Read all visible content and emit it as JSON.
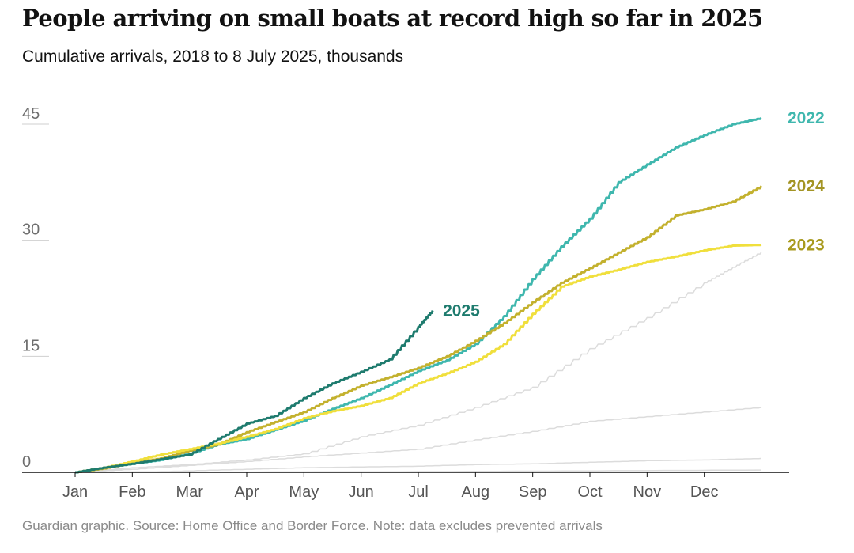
{
  "header": {
    "title": "People arriving on small boats at record high so far in 2025",
    "subtitle": "Cumulative arrivals, 2018 to 8 July 2025, thousands"
  },
  "footer": {
    "source": "Guardian graphic. Source: Home Office and Border Force. Note: data excludes prevented arrivals"
  },
  "chart_data": {
    "type": "line",
    "title": "People arriving on small boats at record high so far in 2025",
    "subtitle": "Cumulative arrivals, 2018 to 8 July 2025, thousands",
    "x_unit": "month",
    "xlim": [
      0,
      12
    ],
    "ylim": [
      0,
      45
    ],
    "y_ticks": [
      0,
      15,
      30,
      45
    ],
    "y_tick_labels": [
      "0",
      "15",
      "30",
      "45"
    ],
    "x_ticks": [
      0,
      1,
      2,
      3,
      4,
      5,
      6,
      7,
      8,
      9,
      10,
      11
    ],
    "x_tick_labels": [
      "Jan",
      "Feb",
      "Mar",
      "Apr",
      "May",
      "Jun",
      "Jul",
      "Aug",
      "Sep",
      "Oct",
      "Nov",
      "Dec"
    ],
    "grid": false,
    "series": [
      {
        "name": "",
        "color": "#dcdcdc",
        "points": [
          [
            0,
            0
          ],
          [
            6,
            0.1
          ],
          [
            12,
            0.3
          ]
        ]
      },
      {
        "name": "",
        "color": "#dcdcdc",
        "points": [
          [
            0,
            0
          ],
          [
            1.5,
            0.1
          ],
          [
            3,
            0.4
          ],
          [
            4,
            0.6
          ],
          [
            6,
            0.8
          ],
          [
            7,
            1.0
          ],
          [
            8,
            1.1
          ],
          [
            9,
            1.3
          ],
          [
            10,
            1.5
          ],
          [
            11,
            1.6
          ],
          [
            12,
            1.8
          ]
        ]
      },
      {
        "name": "",
        "color": "#dcdcdc",
        "points": [
          [
            0,
            0
          ],
          [
            1,
            0.4
          ],
          [
            2,
            0.9
          ],
          [
            3,
            1.4
          ],
          [
            4,
            2.0
          ],
          [
            5,
            2.5
          ],
          [
            6,
            3.0
          ],
          [
            7,
            4.2
          ],
          [
            8,
            5.3
          ],
          [
            9,
            6.6
          ],
          [
            10,
            7.2
          ],
          [
            11,
            7.8
          ],
          [
            12,
            8.4
          ]
        ]
      },
      {
        "name": "",
        "color": "#dcdcdc",
        "points": [
          [
            0,
            0
          ],
          [
            1,
            0.6
          ],
          [
            2,
            1.0
          ],
          [
            3,
            1.6
          ],
          [
            4,
            2.4
          ],
          [
            5,
            4.6
          ],
          [
            6,
            6.1
          ],
          [
            7,
            8.4
          ],
          [
            8,
            11.0
          ],
          [
            9,
            16.0
          ],
          [
            10,
            20.0
          ],
          [
            11,
            24.5
          ],
          [
            11.5,
            26.5
          ],
          [
            12,
            28.5
          ]
        ]
      },
      {
        "name": "2022",
        "color": "#3fb7ae",
        "label_at": "end",
        "points": [
          [
            0,
            0
          ],
          [
            0.5,
            0.6
          ],
          [
            1,
            1.1
          ],
          [
            1.5,
            1.6
          ],
          [
            2,
            2.4
          ],
          [
            2.5,
            3.6
          ],
          [
            3,
            4.3
          ],
          [
            3.5,
            5.5
          ],
          [
            4,
            6.7
          ],
          [
            4.5,
            8.2
          ],
          [
            5,
            9.6
          ],
          [
            5.5,
            11.3
          ],
          [
            6,
            13.1
          ],
          [
            6.5,
            14.5
          ],
          [
            7,
            16.6
          ],
          [
            7.5,
            20.2
          ],
          [
            8,
            25.0
          ],
          [
            8.5,
            29.2
          ],
          [
            9,
            32.8
          ],
          [
            9.5,
            37.5
          ],
          [
            10,
            39.8
          ],
          [
            10.5,
            42.0
          ],
          [
            11,
            43.6
          ],
          [
            11.5,
            45.0
          ],
          [
            12,
            45.8
          ]
        ]
      },
      {
        "name": "2024",
        "color": "#c3b12e",
        "label_at": "end",
        "points": [
          [
            0,
            0
          ],
          [
            0.5,
            0.5
          ],
          [
            1,
            1.2
          ],
          [
            1.5,
            1.8
          ],
          [
            2,
            2.8
          ],
          [
            2.5,
            3.6
          ],
          [
            3,
            5.2
          ],
          [
            3.5,
            6.5
          ],
          [
            4,
            7.8
          ],
          [
            4.5,
            9.6
          ],
          [
            5,
            11.2
          ],
          [
            5.5,
            12.3
          ],
          [
            6,
            13.5
          ],
          [
            6.5,
            15.0
          ],
          [
            7,
            17.0
          ],
          [
            7.5,
            19.3
          ],
          [
            8,
            22.0
          ],
          [
            8.5,
            24.5
          ],
          [
            9,
            26.4
          ],
          [
            9.5,
            28.4
          ],
          [
            10,
            30.4
          ],
          [
            10.5,
            33.2
          ],
          [
            11,
            34.0
          ],
          [
            11.5,
            35.0
          ],
          [
            12,
            37.0
          ]
        ]
      },
      {
        "name": "2023",
        "color": "#f0df3c",
        "label_at": "end",
        "points": [
          [
            0,
            0
          ],
          [
            0.5,
            0.6
          ],
          [
            1,
            1.4
          ],
          [
            1.5,
            2.3
          ],
          [
            2,
            3.0
          ],
          [
            2.5,
            3.7
          ],
          [
            3,
            4.6
          ],
          [
            3.5,
            5.6
          ],
          [
            4,
            7.0
          ],
          [
            4.5,
            7.9
          ],
          [
            5,
            8.6
          ],
          [
            5.5,
            9.6
          ],
          [
            6,
            11.5
          ],
          [
            6.5,
            12.8
          ],
          [
            7,
            14.3
          ],
          [
            7.5,
            16.6
          ],
          [
            8,
            20.5
          ],
          [
            8.5,
            24.0
          ],
          [
            9,
            25.3
          ],
          [
            9.5,
            26.2
          ],
          [
            10,
            27.2
          ],
          [
            10.5,
            27.9
          ],
          [
            11,
            28.7
          ],
          [
            11.5,
            29.3
          ],
          [
            12,
            29.4
          ]
        ]
      },
      {
        "name": "2025",
        "color": "#1e7b6e",
        "label_at": "end",
        "points": [
          [
            0,
            0
          ],
          [
            0.5,
            0.6
          ],
          [
            1,
            1.1
          ],
          [
            1.5,
            1.7
          ],
          [
            2,
            2.3
          ],
          [
            2.5,
            4.3
          ],
          [
            3,
            6.3
          ],
          [
            3.5,
            7.3
          ],
          [
            4,
            9.6
          ],
          [
            4.5,
            11.5
          ],
          [
            5,
            13.0
          ],
          [
            5.5,
            14.6
          ],
          [
            6,
            18.8
          ],
          [
            6.25,
            20.9
          ]
        ]
      }
    ]
  }
}
